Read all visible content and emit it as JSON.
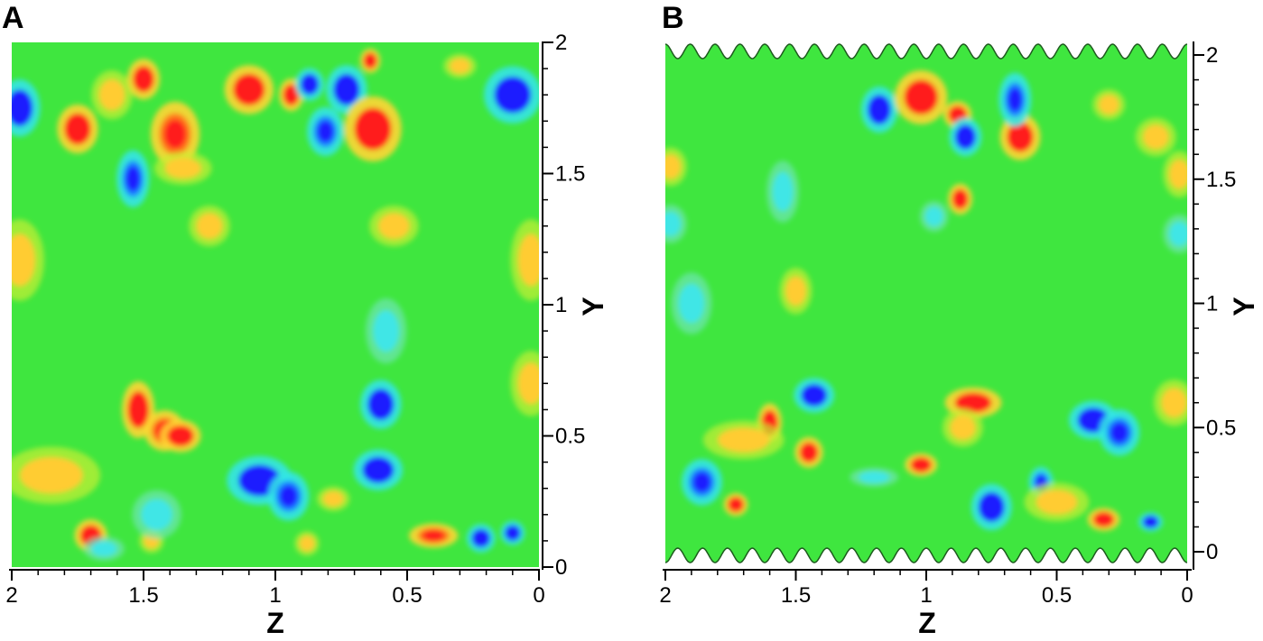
{
  "chart_data": [
    {
      "type": "heatmap",
      "panel_label": "A",
      "xlabel": "Z",
      "ylabel": "Y",
      "xlim": [
        2,
        0
      ],
      "ylim": [
        0,
        2
      ],
      "x_ticks": [
        2,
        1.5,
        1,
        0.5,
        0
      ],
      "x_tick_labels": [
        "2",
        "1.5",
        "1",
        "0.5",
        "0"
      ],
      "y_ticks": [
        0,
        0.5,
        1,
        1.5,
        2
      ],
      "y_tick_labels": [
        "0",
        "0.5",
        "1",
        "1.5",
        "2"
      ],
      "wall": "flat",
      "colors": {
        "background": "#3fe63f",
        "low": "#1a1aff",
        "mid_low": "#3fe6e6",
        "mid_high": "#ffcc33",
        "high": "#ff1f1f"
      },
      "blobs": [
        {
          "z": 1.97,
          "y": 1.75,
          "rz": 0.05,
          "ry": 0.07,
          "level": -1
        },
        {
          "z": 1.75,
          "y": 1.67,
          "rz": 0.05,
          "ry": 0.06,
          "level": 1
        },
        {
          "z": 1.62,
          "y": 1.8,
          "rz": 0.05,
          "ry": 0.06,
          "level": 0.5
        },
        {
          "z": 1.5,
          "y": 1.86,
          "rz": 0.04,
          "ry": 0.05,
          "level": 1
        },
        {
          "z": 1.38,
          "y": 1.65,
          "rz": 0.06,
          "ry": 0.08,
          "level": 0.85
        },
        {
          "z": 1.35,
          "y": 1.52,
          "rz": 0.07,
          "ry": 0.04,
          "level": 0.55
        },
        {
          "z": 1.54,
          "y": 1.48,
          "rz": 0.04,
          "ry": 0.07,
          "level": -0.85
        },
        {
          "z": 1.1,
          "y": 1.82,
          "rz": 0.06,
          "ry": 0.06,
          "level": 1
        },
        {
          "z": 0.94,
          "y": 1.8,
          "rz": 0.03,
          "ry": 0.04,
          "level": 1
        },
        {
          "z": 0.87,
          "y": 1.84,
          "rz": 0.035,
          "ry": 0.04,
          "level": -1
        },
        {
          "z": 0.73,
          "y": 1.82,
          "rz": 0.05,
          "ry": 0.06,
          "level": -1
        },
        {
          "z": 0.63,
          "y": 1.67,
          "rz": 0.07,
          "ry": 0.08,
          "level": 1
        },
        {
          "z": 0.81,
          "y": 1.66,
          "rz": 0.045,
          "ry": 0.06,
          "level": -0.9
        },
        {
          "z": 0.64,
          "y": 1.93,
          "rz": 0.025,
          "ry": 0.03,
          "level": 1
        },
        {
          "z": 0.3,
          "y": 1.91,
          "rz": 0.04,
          "ry": 0.03,
          "level": 0.6
        },
        {
          "z": 0.1,
          "y": 1.8,
          "rz": 0.07,
          "ry": 0.07,
          "level": -1
        },
        {
          "z": 1.97,
          "y": 1.17,
          "rz": 0.06,
          "ry": 0.1,
          "level": 0.7
        },
        {
          "z": 0.03,
          "y": 1.17,
          "rz": 0.05,
          "ry": 0.1,
          "level": 0.55
        },
        {
          "z": 1.25,
          "y": 1.3,
          "rz": 0.05,
          "ry": 0.05,
          "level": 0.35
        },
        {
          "z": 0.55,
          "y": 1.3,
          "rz": 0.06,
          "ry": 0.05,
          "level": 0.3
        },
        {
          "z": 0.58,
          "y": 0.9,
          "rz": 0.05,
          "ry": 0.08,
          "level": -0.5
        },
        {
          "z": 1.52,
          "y": 0.6,
          "rz": 0.04,
          "ry": 0.07,
          "level": 1
        },
        {
          "z": 1.42,
          "y": 0.52,
          "rz": 0.05,
          "ry": 0.05,
          "level": 0.75
        },
        {
          "z": 1.36,
          "y": 0.5,
          "rz": 0.05,
          "ry": 0.04,
          "level": 1
        },
        {
          "z": 1.06,
          "y": 0.33,
          "rz": 0.08,
          "ry": 0.06,
          "level": -1
        },
        {
          "z": 0.95,
          "y": 0.27,
          "rz": 0.05,
          "ry": 0.06,
          "level": -0.85
        },
        {
          "z": 0.6,
          "y": 0.62,
          "rz": 0.05,
          "ry": 0.06,
          "level": -1
        },
        {
          "z": 0.61,
          "y": 0.37,
          "rz": 0.06,
          "ry": 0.05,
          "level": -1
        },
        {
          "z": 0.78,
          "y": 0.26,
          "rz": 0.04,
          "ry": 0.03,
          "level": 0.6
        },
        {
          "z": 1.7,
          "y": 0.12,
          "rz": 0.04,
          "ry": 0.04,
          "level": 1
        },
        {
          "z": 1.47,
          "y": 0.1,
          "rz": 0.03,
          "ry": 0.03,
          "level": 0.6
        },
        {
          "z": 0.88,
          "y": 0.09,
          "rz": 0.03,
          "ry": 0.03,
          "level": 0.5
        },
        {
          "z": 0.4,
          "y": 0.12,
          "rz": 0.06,
          "ry": 0.03,
          "level": 0.8
        },
        {
          "z": 0.22,
          "y": 0.11,
          "rz": 0.035,
          "ry": 0.035,
          "level": -1
        },
        {
          "z": 0.1,
          "y": 0.13,
          "rz": 0.03,
          "ry": 0.03,
          "level": -1
        },
        {
          "z": 1.85,
          "y": 0.35,
          "rz": 0.12,
          "ry": 0.07,
          "level": 0.3
        },
        {
          "z": 1.65,
          "y": 0.07,
          "rz": 0.05,
          "ry": 0.03,
          "level": -0.4
        },
        {
          "z": 1.45,
          "y": 0.2,
          "rz": 0.06,
          "ry": 0.06,
          "level": -0.3
        },
        {
          "z": 0.03,
          "y": 0.7,
          "rz": 0.05,
          "ry": 0.08,
          "level": 0.3
        }
      ]
    },
    {
      "type": "heatmap",
      "panel_label": "B",
      "xlabel": "Z",
      "ylabel": "Y",
      "xlim": [
        2,
        0
      ],
      "ylim": [
        0,
        2
      ],
      "x_ticks": [
        2,
        1.5,
        1,
        0.5,
        0
      ],
      "x_tick_labels": [
        "2",
        "1.5",
        "1",
        "0.5",
        "0"
      ],
      "y_ticks": [
        0,
        0.5,
        1,
        1.5,
        2
      ],
      "y_tick_labels": [
        "0",
        "0.5",
        "1",
        "1.5",
        "2"
      ],
      "wall": "wavy",
      "wall_waves": 21,
      "colors": {
        "background": "#3fe63f",
        "low": "#1a1aff",
        "mid_low": "#3fe6e6",
        "mid_high": "#ffcc33",
        "high": "#ff1f1f"
      },
      "blobs": [
        {
          "z": 1.18,
          "y": 1.78,
          "rz": 0.045,
          "ry": 0.06,
          "level": -1
        },
        {
          "z": 1.02,
          "y": 1.83,
          "rz": 0.065,
          "ry": 0.07,
          "level": 1
        },
        {
          "z": 0.88,
          "y": 1.76,
          "rz": 0.035,
          "ry": 0.035,
          "level": 1
        },
        {
          "z": 0.85,
          "y": 1.67,
          "rz": 0.04,
          "ry": 0.05,
          "level": -1
        },
        {
          "z": 0.64,
          "y": 1.67,
          "rz": 0.05,
          "ry": 0.06,
          "level": 1
        },
        {
          "z": 0.66,
          "y": 1.82,
          "rz": 0.04,
          "ry": 0.07,
          "level": -0.9
        },
        {
          "z": 0.87,
          "y": 1.42,
          "rz": 0.03,
          "ry": 0.04,
          "level": 1
        },
        {
          "z": 0.97,
          "y": 1.35,
          "rz": 0.035,
          "ry": 0.04,
          "level": -0.6
        },
        {
          "z": 1.55,
          "y": 1.45,
          "rz": 0.04,
          "ry": 0.08,
          "level": -0.5
        },
        {
          "z": 1.98,
          "y": 1.32,
          "rz": 0.04,
          "ry": 0.05,
          "level": -0.5
        },
        {
          "z": 0.03,
          "y": 1.28,
          "rz": 0.04,
          "ry": 0.05,
          "level": -0.5
        },
        {
          "z": 0.03,
          "y": 1.52,
          "rz": 0.04,
          "ry": 0.06,
          "level": 0.5
        },
        {
          "z": 1.98,
          "y": 1.55,
          "rz": 0.04,
          "ry": 0.05,
          "level": 0.45
        },
        {
          "z": 1.5,
          "y": 1.05,
          "rz": 0.04,
          "ry": 0.06,
          "level": 0.5
        },
        {
          "z": 1.43,
          "y": 0.63,
          "rz": 0.05,
          "ry": 0.045,
          "level": -1
        },
        {
          "z": 1.6,
          "y": 0.52,
          "rz": 0.03,
          "ry": 0.05,
          "level": 1
        },
        {
          "z": 1.45,
          "y": 0.4,
          "rz": 0.035,
          "ry": 0.04,
          "level": 1
        },
        {
          "z": 1.73,
          "y": 0.19,
          "rz": 0.03,
          "ry": 0.03,
          "level": 1
        },
        {
          "z": 1.02,
          "y": 0.35,
          "rz": 0.04,
          "ry": 0.03,
          "level": 1
        },
        {
          "z": 0.82,
          "y": 0.6,
          "rz": 0.07,
          "ry": 0.04,
          "level": 1
        },
        {
          "z": 0.86,
          "y": 0.5,
          "rz": 0.05,
          "ry": 0.05,
          "level": 0.7
        },
        {
          "z": 0.75,
          "y": 0.18,
          "rz": 0.05,
          "ry": 0.06,
          "level": -1
        },
        {
          "z": 0.56,
          "y": 0.28,
          "rz": 0.03,
          "ry": 0.04,
          "level": -0.9
        },
        {
          "z": 0.36,
          "y": 0.53,
          "rz": 0.06,
          "ry": 0.05,
          "level": -1
        },
        {
          "z": 0.26,
          "y": 0.48,
          "rz": 0.05,
          "ry": 0.06,
          "level": -0.9
        },
        {
          "z": 0.32,
          "y": 0.13,
          "rz": 0.04,
          "ry": 0.03,
          "level": 1
        },
        {
          "z": 0.14,
          "y": 0.12,
          "rz": 0.03,
          "ry": 0.025,
          "level": -1
        },
        {
          "z": 1.86,
          "y": 0.28,
          "rz": 0.05,
          "ry": 0.06,
          "level": -0.9
        },
        {
          "z": 1.2,
          "y": 0.3,
          "rz": 0.06,
          "ry": 0.025,
          "level": -0.45
        },
        {
          "z": 1.7,
          "y": 0.45,
          "rz": 0.1,
          "ry": 0.05,
          "level": 0.3
        },
        {
          "z": 0.5,
          "y": 0.2,
          "rz": 0.08,
          "ry": 0.05,
          "level": 0.35
        },
        {
          "z": 0.05,
          "y": 0.6,
          "rz": 0.05,
          "ry": 0.06,
          "level": 0.35
        },
        {
          "z": 1.9,
          "y": 1.0,
          "rz": 0.05,
          "ry": 0.08,
          "level": -0.3
        },
        {
          "z": 0.3,
          "y": 1.8,
          "rz": 0.04,
          "ry": 0.04,
          "level": 0.45
        },
        {
          "z": 0.12,
          "y": 1.67,
          "rz": 0.05,
          "ry": 0.05,
          "level": 0.3
        }
      ]
    }
  ]
}
